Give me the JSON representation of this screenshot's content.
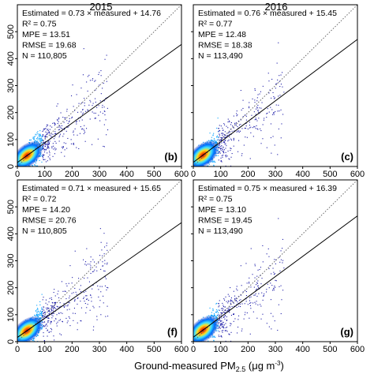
{
  "figure": {
    "column_titles": [
      "2015",
      "2016"
    ],
    "xlabel_main": "Ground-measured PM",
    "xlabel_sub": "2.5",
    "xlabel_unit": "(μg  m",
    "xlabel_unit_sup": "-3",
    "xlabel_close": ")"
  },
  "chart_data": [
    {
      "type": "scatter",
      "panel_label": "(b)",
      "column": "2015",
      "fit": {
        "slope": 0.73,
        "intercept": 14.76
      },
      "stats": [
        "Estimated = 0.73 × measured + 14.76",
        "R² = 0.75",
        "MPE = 13.51",
        "RMSE = 19.68",
        "N = 110,805"
      ],
      "xlim": [
        0,
        600
      ],
      "ylim": [
        0,
        600
      ],
      "xticks": [
        "0",
        "100",
        "200",
        "300",
        "400",
        "500",
        "600"
      ],
      "yticks": [
        "0",
        "100",
        "200",
        "300",
        "400",
        "500"
      ],
      "reference_line": "1:1"
    },
    {
      "type": "scatter",
      "panel_label": "(c)",
      "column": "2016",
      "fit": {
        "slope": 0.76,
        "intercept": 15.45
      },
      "stats": [
        "Estimated = 0.76 × measured + 15.45",
        "R² = 0.77",
        "MPE = 12.48",
        "RMSE = 18.38",
        "N = 113,490"
      ],
      "xlim": [
        0,
        600
      ],
      "ylim": [
        0,
        600
      ],
      "xticks": [
        "0",
        "100",
        "200",
        "300",
        "400",
        "500",
        "600"
      ],
      "yticks": [
        "0",
        "100",
        "200",
        "300",
        "400",
        "500"
      ],
      "reference_line": "1:1"
    },
    {
      "type": "scatter",
      "panel_label": "(f)",
      "column": "2015",
      "fit": {
        "slope": 0.71,
        "intercept": 15.65
      },
      "stats": [
        "Estimated = 0.71 × measured + 15.65",
        "R² = 0.72",
        "MPE = 14.20",
        "RMSE = 20.76",
        "N = 110,805"
      ],
      "xlim": [
        0,
        600
      ],
      "ylim": [
        0,
        600
      ],
      "xticks": [
        "0",
        "100",
        "200",
        "300",
        "400",
        "500",
        "600"
      ],
      "yticks": [
        "0",
        "100",
        "200",
        "300",
        "400",
        "500"
      ],
      "reference_line": "1:1"
    },
    {
      "type": "scatter",
      "panel_label": "(g)",
      "column": "2016",
      "fit": {
        "slope": 0.75,
        "intercept": 16.39
      },
      "stats": [
        "Estimated = 0.75 × measured + 16.39",
        "R² = 0.75",
        "MPE = 13.10",
        "RMSE = 19.45",
        "N = 113,490"
      ],
      "xlim": [
        0,
        600
      ],
      "ylim": [
        0,
        600
      ],
      "xticks": [
        "0",
        "100",
        "200",
        "300",
        "400",
        "500",
        "600"
      ],
      "yticks": [
        "0",
        "100",
        "200",
        "300",
        "400",
        "500"
      ],
      "reference_line": "1:1"
    }
  ],
  "colors": {
    "density_low": "#1a1aa8",
    "density_mid": "#00a0ff",
    "density_high": "#ffe020",
    "density_max": "#c80000"
  }
}
